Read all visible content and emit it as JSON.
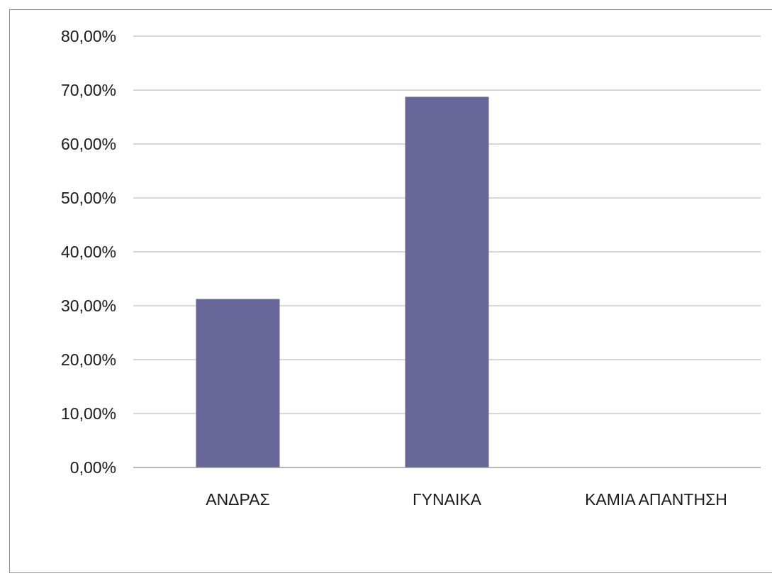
{
  "chart_data": {
    "type": "bar",
    "categories": [
      "ΑΝΔΡΑΣ",
      "ΓΥΝΑΙΚΑ",
      "ΚΑΜΙΑ ΑΠΑΝΤΗΣΗ"
    ],
    "values": [
      31.25,
      68.75,
      0
    ],
    "ylim": [
      0,
      80
    ],
    "y_ticks": [
      0,
      10,
      20,
      30,
      40,
      50,
      60,
      70,
      80
    ],
    "y_tick_labels": [
      "0,00%",
      "10,00%",
      "20,00%",
      "30,00%",
      "40,00%",
      "50,00%",
      "60,00%",
      "70,00%",
      "80,00%"
    ],
    "grid": true,
    "legend": "none",
    "bar_color": "#666699"
  }
}
